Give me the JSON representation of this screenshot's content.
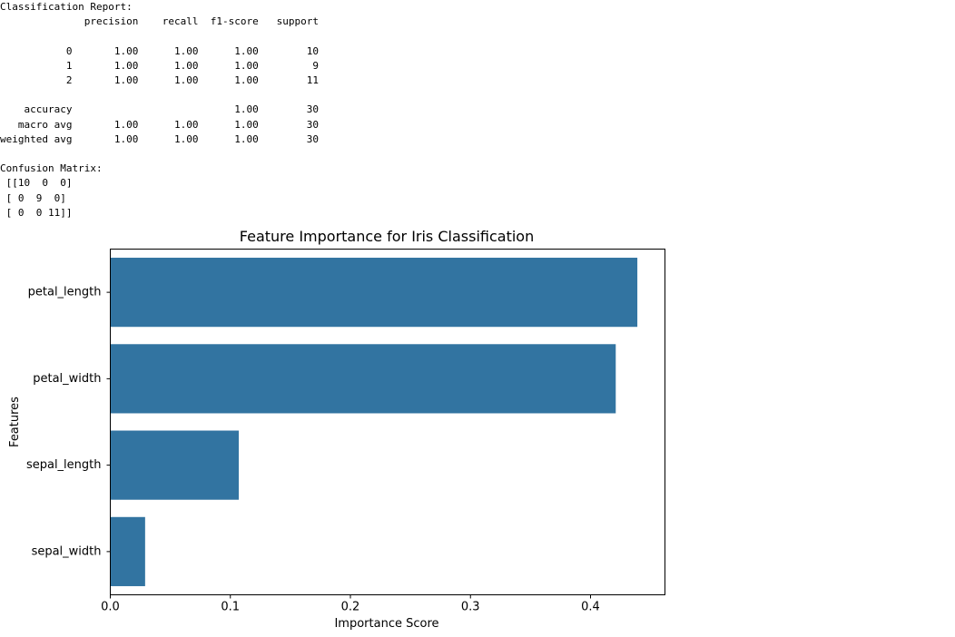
{
  "output": {
    "report_text": "Classification Report:\n              precision    recall  f1-score   support\n\n           0       1.00      1.00      1.00        10\n           1       1.00      1.00      1.00         9\n           2       1.00      1.00      1.00        11\n\n    accuracy                           1.00        30\n   macro avg       1.00      1.00      1.00        30\nweighted avg       1.00      1.00      1.00        30\n\nConfusion Matrix:\n [[10  0  0]\n [ 0  9  0]\n [ 0  0 11]]"
  },
  "chart_data": {
    "type": "bar",
    "orientation": "horizontal",
    "title": "Feature Importance for Iris Classification",
    "xlabel": "Importance Score",
    "ylabel": "Features",
    "categories": [
      "petal_length",
      "petal_width",
      "sepal_length",
      "sepal_width"
    ],
    "values": [
      0.439,
      0.421,
      0.107,
      0.029
    ],
    "xlim": [
      0.0,
      0.462
    ],
    "xticks": [
      0.0,
      0.1,
      0.2,
      0.3,
      0.4
    ],
    "xtick_labels": [
      "0.0",
      "0.1",
      "0.2",
      "0.3",
      "0.4"
    ],
    "bar_color": "#3274a1",
    "grid": false
  }
}
